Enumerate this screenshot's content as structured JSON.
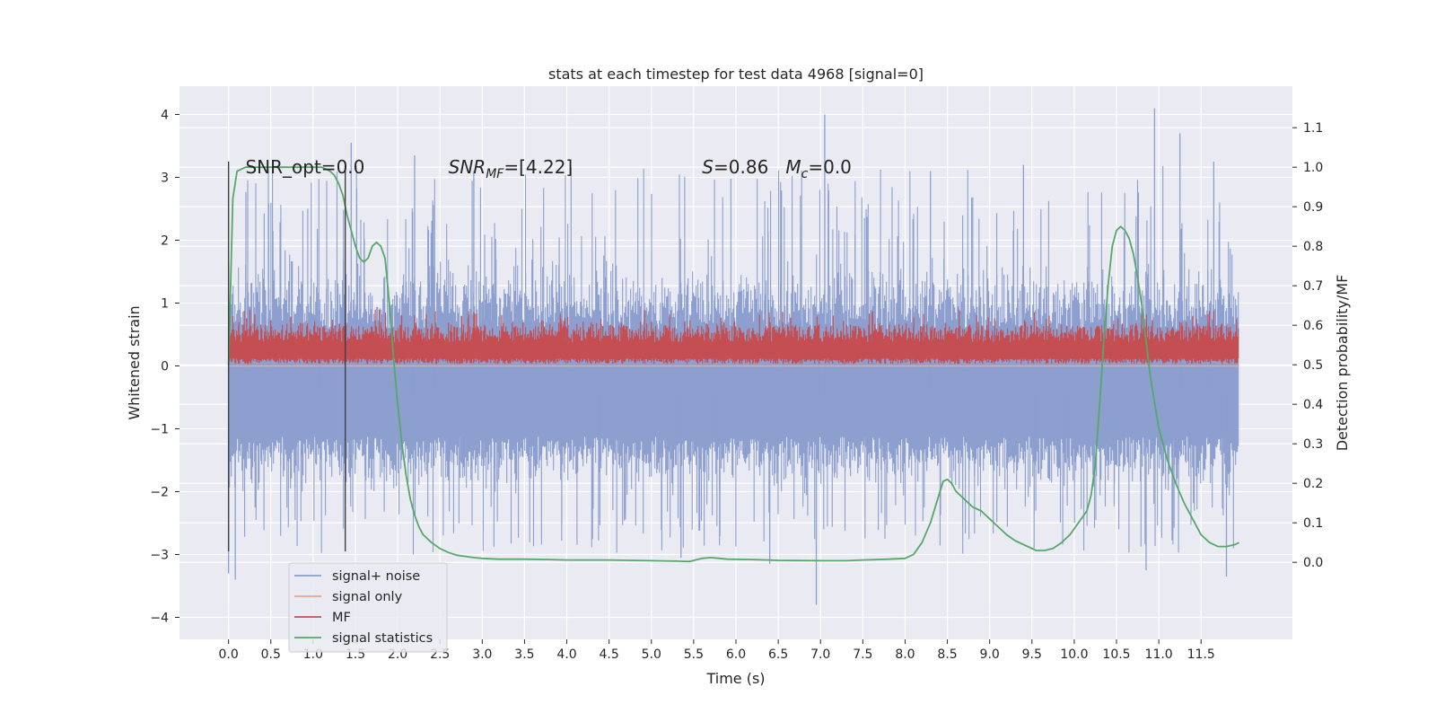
{
  "chart_data": {
    "type": "line",
    "title": "stats at each timestep for test data 4968 [signal=0]",
    "xlabel": "Time (s)",
    "ylabel": "Whitened strain",
    "y2label": "Detection probability/MF",
    "xlim": [
      -0.58,
      12.58
    ],
    "ylim": [
      -4.35,
      4.45
    ],
    "y2lim": [
      -0.195,
      1.205
    ],
    "xticks": [
      0.0,
      0.5,
      1.0,
      1.5,
      2.0,
      2.5,
      3.0,
      3.5,
      4.0,
      4.5,
      5.0,
      5.5,
      6.0,
      6.5,
      7.0,
      7.5,
      8.0,
      8.5,
      9.0,
      9.5,
      10.0,
      10.5,
      11.0,
      11.5
    ],
    "xtick_labels": [
      "0.0",
      "0.5",
      "1.0",
      "1.5",
      "2.0",
      "2.5",
      "3.0",
      "3.5",
      "4.0",
      "4.5",
      "5.0",
      "5.5",
      "6.0",
      "6.5",
      "7.0",
      "7.5",
      "8.0",
      "8.5",
      "9.0",
      "9.5",
      "10.0",
      "10.5",
      "11.0",
      "11.5"
    ],
    "yticks": [
      4,
      3,
      2,
      1,
      0,
      -1,
      -2,
      -3,
      -4
    ],
    "ytick_labels": [
      "4",
      "3",
      "2",
      "1",
      "0",
      "−1",
      "−2",
      "−3",
      "−4"
    ],
    "y2ticks": [
      1.1,
      1.0,
      0.9,
      0.8,
      0.7,
      0.6,
      0.5,
      0.4,
      0.3,
      0.2,
      0.1,
      0.0
    ],
    "y2tick_labels": [
      "1.1",
      "1.0",
      "0.9",
      "0.8",
      "0.7",
      "0.6",
      "0.5",
      "0.4",
      "0.3",
      "0.2",
      "0.1",
      "0.0"
    ],
    "grid": true,
    "legend_placement": "lower-left",
    "annotations": [
      {
        "text": "SNR_opt=0.0",
        "x": 0.2,
        "y2": 1.0
      },
      {
        "html_parts": [
          "SNR",
          "MF",
          "=[4.22]"
        ],
        "x": 2.6,
        "y2": 1.0
      },
      {
        "html_parts": [
          "S",
          "=0.86   ",
          "M",
          "c",
          "=0.0"
        ],
        "x": 5.6,
        "y2": 1.0
      }
    ],
    "vertical_lines": [
      {
        "x": 0.0,
        "y_from": -2.95,
        "y_to": 3.25,
        "color": "#404040"
      },
      {
        "x": 1.38,
        "y_from": -2.95,
        "y_to": 3.25,
        "color": "#404040"
      }
    ],
    "series": [
      {
        "name": "signal+ noise",
        "axis": "left",
        "color": "#8c9fcf",
        "kind": "noise",
        "x_range": [
          0.0,
          11.95
        ],
        "center": -0.42,
        "envelope_hi_typ": 1.4,
        "envelope_lo_typ": -1.7,
        "spikes": [
          {
            "x": 0.0,
            "y": -3.3
          },
          {
            "x": 0.08,
            "y": -3.4
          },
          {
            "x": 1.45,
            "y": 3.55
          },
          {
            "x": 2.2,
            "y": 3.35
          },
          {
            "x": 5.35,
            "y": -3.05
          },
          {
            "x": 6.4,
            "y": -3.15
          },
          {
            "x": 6.95,
            "y": -3.8
          },
          {
            "x": 7.05,
            "y": 4.0
          },
          {
            "x": 10.85,
            "y": -3.25
          },
          {
            "x": 10.95,
            "y": 4.1
          },
          {
            "x": 11.8,
            "y": -3.35
          },
          {
            "x": 11.25,
            "y": 3.7
          },
          {
            "x": 2.9,
            "y": 3.1
          },
          {
            "x": 8.3,
            "y": 3.1
          },
          {
            "x": 9.4,
            "y": 3.2
          },
          {
            "x": 11.65,
            "y": 3.25
          }
        ]
      },
      {
        "name": "signal only",
        "axis": "left",
        "color": "#e8a88a",
        "kind": "flat",
        "value": 0.0
      },
      {
        "name": "MF",
        "axis": "left",
        "color": "#c44e52",
        "kind": "band",
        "x_range": [
          0.0,
          11.95
        ],
        "band_lo": 0.0,
        "band_hi": 0.6,
        "peak_typ": 0.75
      },
      {
        "name": "signal statistics",
        "axis": "right",
        "color": "#55a868",
        "kind": "line",
        "x": [
          0.0,
          0.05,
          0.1,
          0.15,
          0.2,
          0.3,
          0.4,
          0.5,
          0.6,
          0.7,
          0.8,
          0.9,
          1.0,
          1.1,
          1.2,
          1.25,
          1.3,
          1.35,
          1.4,
          1.45,
          1.5,
          1.55,
          1.6,
          1.65,
          1.7,
          1.75,
          1.8,
          1.85,
          1.9,
          1.95,
          2.0,
          2.05,
          2.1,
          2.15,
          2.2,
          2.25,
          2.3,
          2.4,
          2.5,
          2.6,
          2.7,
          2.8,
          2.9,
          3.0,
          3.2,
          3.5,
          3.8,
          4.0,
          4.5,
          5.0,
          5.3,
          5.45,
          5.6,
          5.7,
          5.9,
          6.2,
          6.5,
          7.0,
          7.3,
          7.5,
          7.8,
          8.0,
          8.1,
          8.2,
          8.3,
          8.4,
          8.45,
          8.5,
          8.55,
          8.6,
          8.7,
          8.8,
          8.9,
          9.0,
          9.1,
          9.2,
          9.3,
          9.45,
          9.55,
          9.65,
          9.75,
          9.85,
          9.95,
          10.05,
          10.15,
          10.2,
          10.25,
          10.3,
          10.35,
          10.4,
          10.45,
          10.5,
          10.55,
          10.6,
          10.65,
          10.7,
          10.75,
          10.8,
          10.85,
          10.9,
          11.0,
          11.1,
          11.2,
          11.3,
          11.4,
          11.5,
          11.6,
          11.7,
          11.8,
          11.9,
          11.95
        ],
        "values": [
          0.5,
          0.92,
          0.99,
          0.995,
          1.0,
          1.0,
          1.0,
          1.0,
          1.0,
          1.0,
          1.0,
          1.0,
          1.0,
          1.0,
          0.99,
          0.98,
          0.96,
          0.93,
          0.88,
          0.84,
          0.8,
          0.77,
          0.76,
          0.77,
          0.8,
          0.81,
          0.8,
          0.77,
          0.66,
          0.52,
          0.4,
          0.3,
          0.22,
          0.16,
          0.12,
          0.09,
          0.07,
          0.05,
          0.035,
          0.025,
          0.018,
          0.015,
          0.012,
          0.01,
          0.008,
          0.008,
          0.007,
          0.006,
          0.006,
          0.004,
          0.003,
          0.002,
          0.01,
          0.012,
          0.008,
          0.007,
          0.005,
          0.004,
          0.004,
          0.006,
          0.008,
          0.01,
          0.02,
          0.05,
          0.1,
          0.17,
          0.205,
          0.21,
          0.2,
          0.18,
          0.16,
          0.14,
          0.13,
          0.11,
          0.09,
          0.07,
          0.055,
          0.04,
          0.03,
          0.03,
          0.035,
          0.05,
          0.07,
          0.1,
          0.13,
          0.17,
          0.25,
          0.4,
          0.56,
          0.7,
          0.8,
          0.84,
          0.85,
          0.84,
          0.82,
          0.78,
          0.72,
          0.65,
          0.56,
          0.47,
          0.34,
          0.26,
          0.2,
          0.15,
          0.11,
          0.07,
          0.05,
          0.04,
          0.04,
          0.045,
          0.05
        ]
      }
    ]
  }
}
